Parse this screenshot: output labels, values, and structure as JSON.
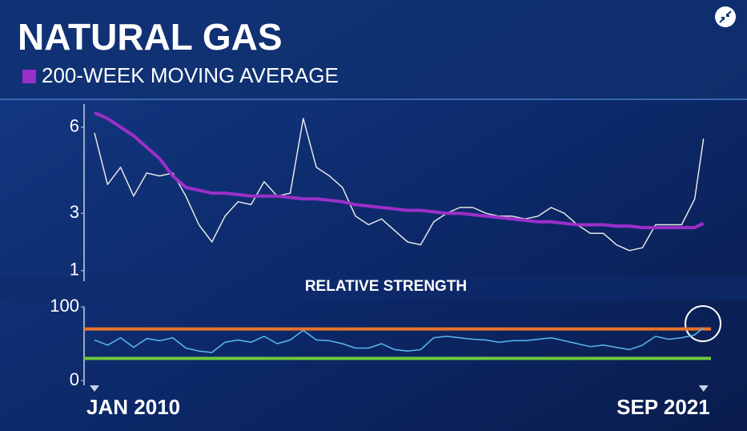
{
  "chart_data": [
    {
      "type": "line",
      "title": "NATURAL GAS",
      "x": [
        2010,
        2010.25,
        2010.5,
        2010.75,
        2011,
        2011.25,
        2011.5,
        2011.75,
        2012,
        2012.25,
        2012.5,
        2012.75,
        2013,
        2013.25,
        2013.5,
        2013.75,
        2014,
        2014.25,
        2014.5,
        2014.75,
        2015,
        2015.25,
        2015.5,
        2015.75,
        2016,
        2016.25,
        2016.5,
        2016.75,
        2017,
        2017.25,
        2017.5,
        2017.75,
        2018,
        2018.25,
        2018.5,
        2018.75,
        2019,
        2019.25,
        2019.5,
        2019.75,
        2020,
        2020.25,
        2020.5,
        2020.75,
        2021,
        2021.25,
        2021.5,
        2021.67
      ],
      "xlim": [
        2009.8,
        2021.72
      ],
      "ylim": [
        0.8,
        6.8
      ],
      "yticks": [
        1,
        3,
        6
      ],
      "series": [
        {
          "color": "#e6e6e6",
          "values": [
            5.8,
            4.0,
            4.6,
            3.6,
            4.4,
            4.3,
            4.4,
            3.6,
            2.6,
            2.0,
            2.9,
            3.4,
            3.3,
            4.1,
            3.6,
            3.7,
            6.3,
            4.6,
            4.3,
            3.9,
            2.9,
            2.6,
            2.8,
            2.4,
            2.0,
            1.9,
            2.7,
            3.0,
            3.2,
            3.2,
            3.0,
            2.9,
            2.9,
            2.8,
            2.9,
            3.2,
            3.0,
            2.6,
            2.3,
            2.3,
            1.9,
            1.7,
            1.8,
            2.6,
            2.6,
            2.6,
            3.5,
            5.6
          ]
        },
        {
          "name": "200-WEEK MOVING AVERAGE",
          "color": "#9b2fc9",
          "values": [
            6.5,
            6.3,
            6.0,
            5.7,
            5.3,
            4.9,
            4.3,
            3.9,
            3.8,
            3.7,
            3.7,
            3.65,
            3.6,
            3.6,
            3.6,
            3.55,
            3.5,
            3.5,
            3.45,
            3.4,
            3.3,
            3.25,
            3.2,
            3.15,
            3.1,
            3.1,
            3.05,
            3.0,
            3.0,
            2.95,
            2.9,
            2.85,
            2.8,
            2.75,
            2.7,
            2.7,
            2.65,
            2.6,
            2.6,
            2.6,
            2.55,
            2.55,
            2.5,
            2.5,
            2.5,
            2.5,
            2.5,
            2.65
          ]
        }
      ]
    },
    {
      "type": "line",
      "title": "RELATIVE STRENGTH",
      "x": [
        2010,
        2010.25,
        2010.5,
        2010.75,
        2011,
        2011.25,
        2011.5,
        2011.75,
        2012,
        2012.25,
        2012.5,
        2012.75,
        2013,
        2013.25,
        2013.5,
        2013.75,
        2014,
        2014.25,
        2014.5,
        2014.75,
        2015,
        2015.25,
        2015.5,
        2015.75,
        2016,
        2016.25,
        2016.5,
        2016.75,
        2017,
        2017.25,
        2017.5,
        2017.75,
        2018,
        2018.25,
        2018.5,
        2018.75,
        2019,
        2019.25,
        2019.5,
        2019.75,
        2020,
        2020.25,
        2020.5,
        2020.75,
        2021,
        2021.25,
        2021.5,
        2021.67
      ],
      "xlim": [
        2009.8,
        2021.72
      ],
      "xticks": [
        {
          "value": 2010,
          "label": "JAN 2010"
        },
        {
          "value": 2021.67,
          "label": "SEP 2021"
        }
      ],
      "ylim": [
        0,
        100
      ],
      "yticks": [
        0,
        100
      ],
      "hlines": [
        {
          "value": 70,
          "color": "#e8732a"
        },
        {
          "value": 30,
          "color": "#6cc93c"
        }
      ],
      "series": [
        {
          "color": "#5ab8f0",
          "values": [
            55,
            48,
            58,
            45,
            57,
            54,
            58,
            44,
            40,
            38,
            52,
            55,
            52,
            60,
            50,
            55,
            68,
            55,
            54,
            50,
            44,
            44,
            50,
            42,
            40,
            42,
            58,
            60,
            58,
            56,
            55,
            52,
            54,
            54,
            56,
            58,
            54,
            50,
            46,
            48,
            45,
            42,
            48,
            60,
            56,
            58,
            62,
            72
          ]
        }
      ]
    }
  ]
}
